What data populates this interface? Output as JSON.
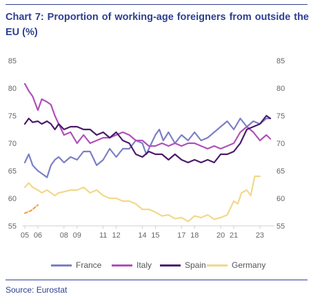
{
  "title": "Chart 7: Proportion of working-age foreigners from outside the EU (%)",
  "source": "Source: Eurostat",
  "chart_data": {
    "type": "line",
    "ylim": [
      55,
      85
    ],
    "y_ticks": [
      55,
      60,
      65,
      70,
      75,
      80,
      85
    ],
    "x_range": [
      2005,
      2023.9
    ],
    "x_ticks": [
      {
        "label": "05",
        "x": 2005
      },
      {
        "label": "06",
        "x": 2006
      },
      {
        "label": "08",
        "x": 2008
      },
      {
        "label": "09",
        "x": 2009
      },
      {
        "label": "11",
        "x": 2011
      },
      {
        "label": "12",
        "x": 2012
      },
      {
        "label": "14",
        "x": 2014
      },
      {
        "label": "15",
        "x": 2015
      },
      {
        "label": "17",
        "x": 2017
      },
      {
        "label": "18",
        "x": 2018
      },
      {
        "label": "20",
        "x": 2020
      },
      {
        "label": "21",
        "x": 2021
      },
      {
        "label": "23",
        "x": 2023
      }
    ],
    "grid": false,
    "legend_position": "bottom",
    "series": [
      {
        "name": "France",
        "color": "#7b7fc4",
        "x": [
          2005,
          2005.3,
          2005.6,
          2006,
          2006.3,
          2006.7,
          2007,
          2007.3,
          2007.6,
          2008,
          2008.5,
          2009,
          2009.5,
          2010,
          2010.5,
          2011,
          2011.5,
          2012,
          2012.5,
          2013,
          2013.5,
          2014,
          2014.3,
          2014.6,
          2015,
          2015.3,
          2015.6,
          2016,
          2016.5,
          2017,
          2017.5,
          2018,
          2018.5,
          2019,
          2019.5,
          2020,
          2020.5,
          2021,
          2021.5,
          2022,
          2022.5,
          2023,
          2023.5,
          2023.8
        ],
        "y": [
          66.5,
          68,
          66,
          65,
          64.5,
          63.8,
          66,
          67,
          67.5,
          66.5,
          67.5,
          67,
          68.5,
          68.5,
          66,
          67,
          69,
          67.5,
          69,
          69,
          70.5,
          70,
          68,
          69.5,
          71.5,
          72.5,
          70.5,
          72,
          70,
          71.5,
          70.5,
          72,
          70.5,
          71,
          72,
          73,
          74,
          72.5,
          74.5,
          73,
          74,
          73.5,
          74.5,
          74.5
        ]
      },
      {
        "name": "Italy",
        "color": "#b04fb8",
        "x": [
          2005,
          2005.3,
          2005.6,
          2006,
          2006.3,
          2006.7,
          2007,
          2007.3,
          2007.6,
          2008,
          2008.5,
          2009,
          2009.5,
          2010,
          2010.5,
          2011,
          2011.5,
          2012,
          2012.5,
          2013,
          2013.5,
          2014,
          2014.5,
          2015,
          2015.5,
          2016,
          2016.5,
          2017,
          2017.5,
          2018,
          2018.5,
          2019,
          2019.5,
          2020,
          2020.5,
          2021,
          2021.5,
          2022,
          2022.5,
          2023,
          2023.5,
          2023.8
        ],
        "y": [
          80.8,
          79.5,
          78.5,
          76,
          78,
          77.5,
          77,
          75,
          73.5,
          71.5,
          72,
          70,
          71.5,
          70,
          70.5,
          71,
          71,
          71.5,
          72,
          71.5,
          70.5,
          70.5,
          69.5,
          69.5,
          70,
          69.5,
          70,
          69.5,
          70,
          70,
          69.5,
          69,
          69.5,
          69,
          69.5,
          70,
          72,
          73,
          72,
          70.5,
          71.5,
          70.8
        ]
      },
      {
        "name": "Spain",
        "color": "#4a1a6b",
        "x": [
          2005,
          2005.3,
          2005.6,
          2006,
          2006.3,
          2006.7,
          2007,
          2007.3,
          2007.6,
          2008,
          2008.5,
          2009,
          2009.5,
          2010,
          2010.5,
          2011,
          2011.5,
          2012,
          2012.5,
          2013,
          2013.5,
          2014,
          2014.5,
          2015,
          2015.5,
          2016,
          2016.5,
          2017,
          2017.5,
          2018,
          2018.5,
          2019,
          2019.5,
          2020,
          2020.5,
          2021,
          2021.5,
          2022,
          2022.5,
          2023,
          2023.5,
          2023.8
        ],
        "y": [
          73.5,
          74.5,
          73.8,
          74,
          73.5,
          74,
          73.5,
          72.5,
          73.5,
          72.5,
          73,
          73,
          72.5,
          72.5,
          71.5,
          72,
          71,
          72,
          70.5,
          70,
          68,
          67.5,
          68.5,
          68,
          68,
          67,
          68,
          67,
          66.5,
          67,
          66.5,
          67,
          66.5,
          68,
          68,
          68.5,
          70,
          72.5,
          73,
          73.5,
          75,
          74.5
        ]
      },
      {
        "name": "Germany",
        "color": "#f2d88a",
        "x": [
          2005,
          2005.3,
          2005.6,
          2006,
          2006.3,
          2006.7,
          2007,
          2007.3,
          2007.6,
          2008,
          2008.5,
          2009,
          2009.5,
          2010,
          2010.5,
          2011,
          2011.5,
          2012,
          2012.5,
          2013,
          2013.5,
          2014,
          2014.5,
          2015,
          2015.5,
          2016,
          2016.5,
          2017,
          2017.5,
          2018,
          2018.5,
          2019,
          2019.5,
          2020,
          2020.5,
          2021,
          2021.3,
          2021.6,
          2022,
          2022.3,
          2022.6,
          2023
        ],
        "y": [
          62,
          62.8,
          62,
          61.5,
          61,
          61.5,
          61,
          60.5,
          61,
          61.2,
          61.5,
          61.5,
          62,
          61,
          61.5,
          60.5,
          60,
          60,
          59.5,
          59.5,
          59,
          58,
          58,
          57.5,
          56.8,
          57,
          56.3,
          56.5,
          55.8,
          56.8,
          56.5,
          57,
          56.2,
          56.5,
          57,
          59.5,
          59,
          61,
          61.5,
          60.5,
          64,
          64
        ]
      },
      {
        "name": "",
        "color": "#f0a04a",
        "dashed": true,
        "x": [
          2005,
          2005.5,
          2006
        ],
        "y": [
          57.3,
          57.8,
          58.8
        ]
      }
    ]
  }
}
